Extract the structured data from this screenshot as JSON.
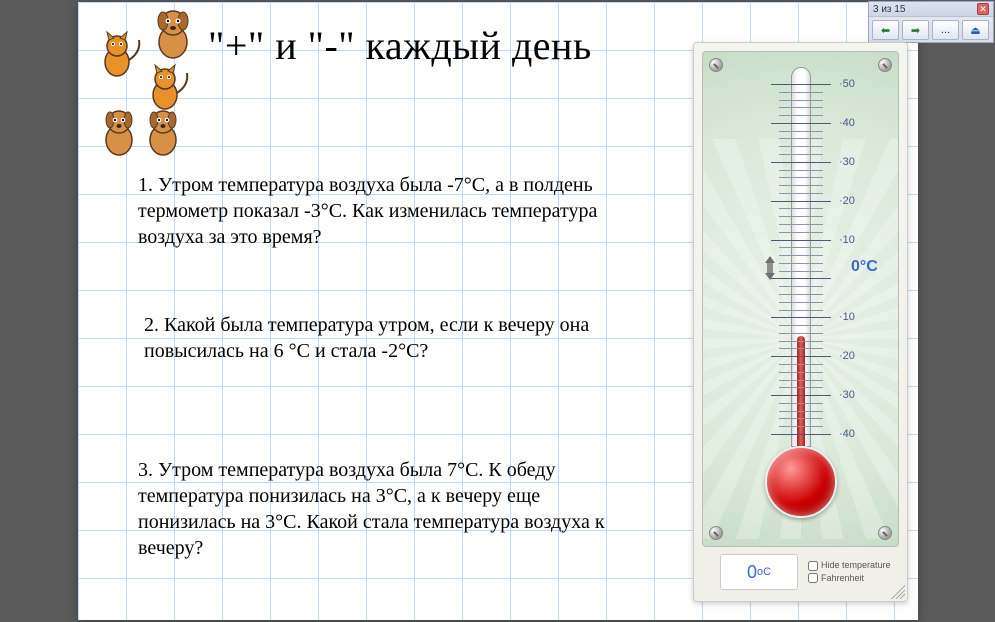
{
  "title": "\"+\" и \"-\" каждый день",
  "questions": {
    "q1": "1. Утром температура воздуха была -7°C, а в полдень термометр показал -3°C. Как изменилась температура воздуха за это время?",
    "q2": "2. Какой была температура утром, если к вечеру она повысилась на 6 °C и стала -2°C?",
    "q3": "3. Утром температура воздуха была 7°C. К обеду температура понизилась на 3°C, а к вечеру еще понизилась на 3°C. Какой стала температура воздуха к вечеру?"
  },
  "thermometer": {
    "scale_labels": [
      "50",
      "40",
      "30",
      "20",
      "10",
      "10",
      "20",
      "30",
      "40"
    ],
    "zero_label": "0°C",
    "current_display": "0",
    "unit_display": "oC",
    "checkbox_hide": "Hide temperature",
    "checkbox_fahr": "Fahrenheit",
    "bulb_color": "#cc0000",
    "mercury_color": "#c03030",
    "bg_color": "#e0ece0",
    "scale_min": -40,
    "scale_max": 50,
    "major_step": 10,
    "minor_step": 2
  },
  "nav": {
    "counter": "3 из 15",
    "prev": "◄",
    "next": "►",
    "more": "...",
    "exit": "✖"
  },
  "animals": {
    "colors": {
      "cat": "#e8902a",
      "dog": "#d89048",
      "outline": "#5a3a1a"
    }
  }
}
